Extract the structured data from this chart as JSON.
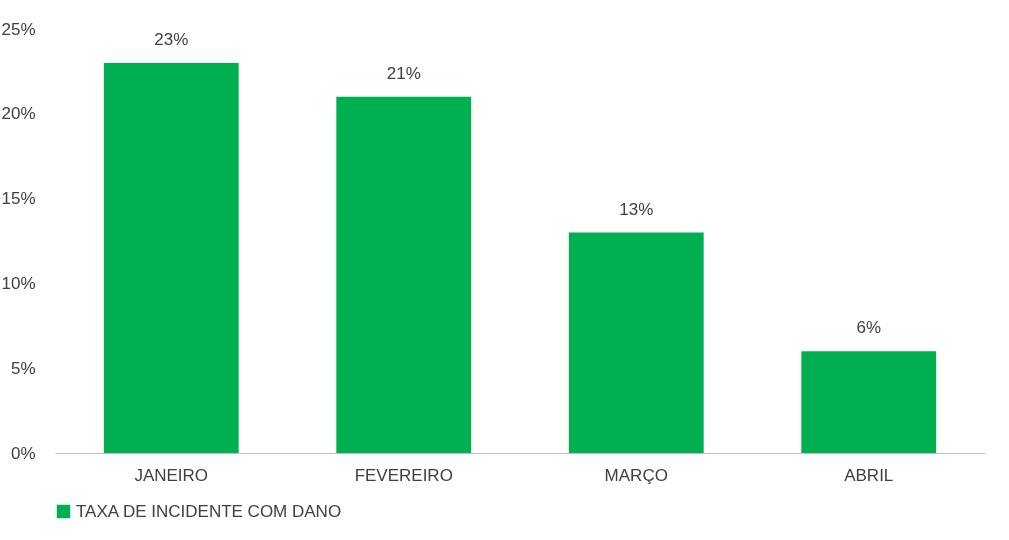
{
  "chart_data": {
    "type": "bar",
    "categories": [
      "JANEIRO",
      "FEVEREIRO",
      "MARÇO",
      "ABRIL"
    ],
    "series": [
      {
        "name": "TAXA DE INCIDENTE COM DANO",
        "color": "#00b050",
        "values": [
          23,
          21,
          13,
          6
        ],
        "value_labels": [
          "23%",
          "21%",
          "13%",
          "6%"
        ]
      }
    ],
    "ylim": [
      0,
      25
    ],
    "yticks": [
      {
        "value": 0,
        "label": "0%"
      },
      {
        "value": 5,
        "label": "5%"
      },
      {
        "value": 10,
        "label": "10%"
      },
      {
        "value": 15,
        "label": "15%"
      },
      {
        "value": 20,
        "label": "20%"
      },
      {
        "value": 25,
        "label": "25%"
      }
    ],
    "grid": false,
    "legend": "bottom"
  }
}
